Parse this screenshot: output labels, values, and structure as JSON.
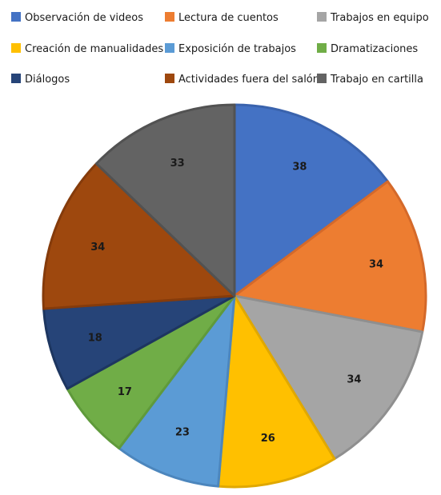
{
  "chart_data": {
    "type": "pie",
    "title": "",
    "legend_position": "top",
    "categories": [
      "Observación de videos",
      "Lectura de cuentos",
      "Trabajos en equipo",
      "Creación de manualidades",
      "Exposición de trabajos",
      "Dramatizaciones",
      "Diálogos",
      "Actividades fuera del salón",
      "Trabajo en cartilla"
    ],
    "values": [
      38,
      34,
      34,
      26,
      23,
      17,
      18,
      34,
      33
    ],
    "colors": [
      "#4472c4",
      "#ed7d31",
      "#a5a5a5",
      "#ffc000",
      "#5b9bd5",
      "#70ad47",
      "#264478",
      "#9e480e",
      "#636363"
    ],
    "border_colors": [
      "#3a63ad",
      "#d4692a",
      "#8f8f8f",
      "#e0a800",
      "#4c86bd",
      "#5f9a3b",
      "#1d3660",
      "#853b0b",
      "#525252"
    ]
  }
}
